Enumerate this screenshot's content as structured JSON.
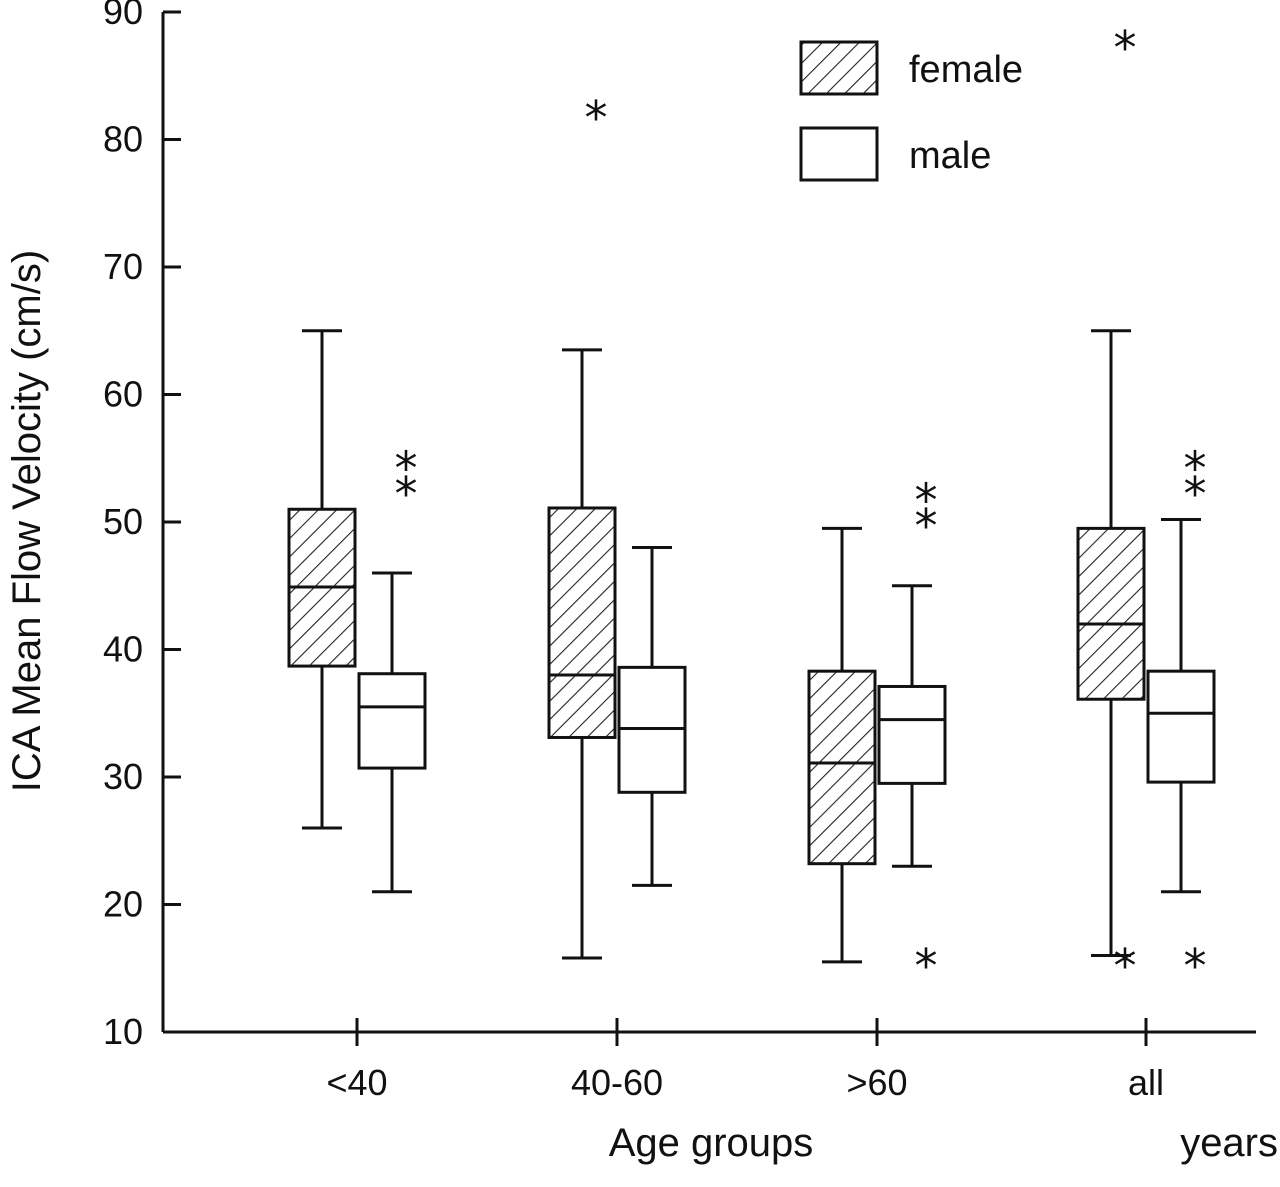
{
  "chart_data": {
    "type": "box",
    "xlabel": "Age groups",
    "xlabel_unit": "years",
    "ylabel": "ICA Mean Flow Velocity (cm/s)",
    "ylim": [
      10,
      90
    ],
    "yticks": [
      "10",
      "20",
      "30",
      "40",
      "50",
      "60",
      "70",
      "80",
      "90"
    ],
    "categories": [
      "<40",
      "40-60",
      ">60",
      "all"
    ],
    "legend": {
      "position": "top-right"
    },
    "series": [
      {
        "name": "female",
        "fill": "hatched",
        "boxes": [
          {
            "whisker_low": 26,
            "q1": 38.7,
            "median": 44.9,
            "q3": 51,
            "whisker_high": 65,
            "outliers": []
          },
          {
            "whisker_low": 15.8,
            "q1": 33.1,
            "median": 38,
            "q3": 51.1,
            "whisker_high": 63.5,
            "outliers": [
              82
            ]
          },
          {
            "whisker_low": 15.5,
            "q1": 23.2,
            "median": 31.1,
            "q3": 38.3,
            "whisker_high": 49.5,
            "outliers": []
          },
          {
            "whisker_low": 16,
            "q1": 36.1,
            "median": 42,
            "q3": 49.5,
            "whisker_high": 65,
            "outliers": [
              15.5,
              87.5
            ]
          }
        ]
      },
      {
        "name": "male",
        "fill": "white",
        "boxes": [
          {
            "whisker_low": 21,
            "q1": 30.7,
            "median": 35.5,
            "q3": 38.1,
            "whisker_high": 46,
            "outliers": [
              52.5,
              54.5
            ]
          },
          {
            "whisker_low": 21.5,
            "q1": 28.8,
            "median": 33.8,
            "q3": 38.6,
            "whisker_high": 48,
            "outliers": []
          },
          {
            "whisker_low": 23,
            "q1": 29.5,
            "median": 34.5,
            "q3": 37.1,
            "whisker_high": 45,
            "outliers": [
              15.5,
              50,
              52
            ]
          },
          {
            "whisker_low": 21,
            "q1": 29.6,
            "median": 35,
            "q3": 38.3,
            "whisker_high": 50.2,
            "outliers": [
              15.5,
              52.5,
              54.5
            ]
          }
        ]
      }
    ]
  }
}
